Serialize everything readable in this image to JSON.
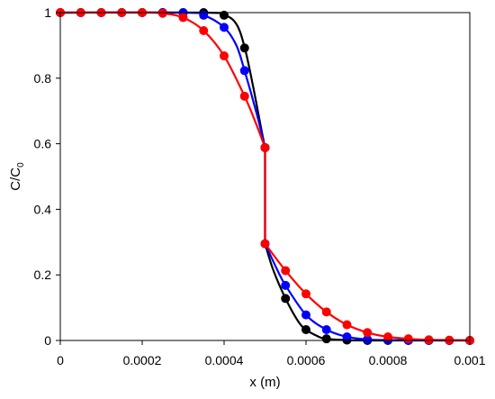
{
  "chart_data": {
    "type": "scatter",
    "title": "",
    "xlabel": "x (m)",
    "ylabel": "C/C",
    "ylabel_subscript": "0",
    "xlim": [
      0,
      0.001
    ],
    "ylim": [
      0,
      1
    ],
    "x_ticks": [
      "0",
      "0.0002",
      "0.0004",
      "0.0006",
      "0.0008",
      "0.001"
    ],
    "x_tick_values": [
      0,
      0.0002,
      0.0004,
      0.0006,
      0.0008,
      0.001
    ],
    "y_ticks": [
      "0",
      "0.2",
      "0.4",
      "0.6",
      "0.8",
      "1"
    ],
    "y_tick_values": [
      0,
      0.2,
      0.4,
      0.6,
      0.8,
      1
    ],
    "grid": false,
    "legend": "none",
    "series": [
      {
        "color": "#000000",
        "points": [
          [
            0,
            1
          ],
          [
            5e-05,
            1
          ],
          [
            0.0001,
            1
          ],
          [
            0.00015,
            1
          ],
          [
            0.0002,
            1
          ],
          [
            0.00025,
            1
          ],
          [
            0.0003,
            1
          ],
          [
            0.00035,
            1
          ],
          [
            0.0004,
            0.992
          ],
          [
            0.00045,
            0.892
          ],
          [
            0.0005,
            0.588
          ],
          [
            0.0005,
            0.295
          ],
          [
            0.00055,
            0.128
          ],
          [
            0.0006,
            0.033
          ],
          [
            0.00065,
            0.005
          ],
          [
            0.0007,
            0.001
          ],
          [
            0.00075,
            0
          ],
          [
            0.0008,
            0
          ],
          [
            0.00085,
            0
          ],
          [
            0.0009,
            0
          ],
          [
            0.00095,
            0
          ],
          [
            0.001,
            0
          ]
        ],
        "curve": [
          [
            0,
            1
          ],
          [
            0.00035,
            1
          ],
          [
            0.0004,
            0.993
          ],
          [
            0.00043,
            0.965
          ],
          [
            0.00045,
            0.895
          ],
          [
            0.00047,
            0.78
          ],
          [
            0.00049,
            0.65
          ],
          [
            0.0005,
            0.588
          ],
          [
            0.0005,
            0.295
          ],
          [
            0.00052,
            0.215
          ],
          [
            0.00055,
            0.128
          ],
          [
            0.00058,
            0.06
          ],
          [
            0.0006,
            0.033
          ],
          [
            0.00063,
            0.012
          ],
          [
            0.00065,
            0.005
          ],
          [
            0.0007,
            0.001
          ],
          [
            0.00075,
            0
          ],
          [
            0.001,
            0
          ]
        ]
      },
      {
        "color": "#0000ff",
        "points": [
          [
            0,
            1
          ],
          [
            5e-05,
            1
          ],
          [
            0.0001,
            1
          ],
          [
            0.00015,
            1
          ],
          [
            0.0002,
            1
          ],
          [
            0.00025,
            1
          ],
          [
            0.0003,
            1
          ],
          [
            0.00035,
            0.992
          ],
          [
            0.0004,
            0.955
          ],
          [
            0.00045,
            0.823
          ],
          [
            0.0005,
            0.588
          ],
          [
            0.0005,
            0.295
          ],
          [
            0.00055,
            0.168
          ],
          [
            0.0006,
            0.078
          ],
          [
            0.00065,
            0.033
          ],
          [
            0.0007,
            0.011
          ],
          [
            0.00075,
            0.003
          ],
          [
            0.0008,
            0.001
          ],
          [
            0.00085,
            0
          ],
          [
            0.0009,
            0
          ],
          [
            0.00095,
            0
          ],
          [
            0.001,
            0
          ]
        ],
        "curve": [
          [
            0,
            1
          ],
          [
            0.0003,
            1
          ],
          [
            0.00035,
            0.992
          ],
          [
            0.0004,
            0.955
          ],
          [
            0.00043,
            0.9
          ],
          [
            0.00045,
            0.823
          ],
          [
            0.00048,
            0.69
          ],
          [
            0.0005,
            0.588
          ],
          [
            0.0005,
            0.295
          ],
          [
            0.00053,
            0.215
          ],
          [
            0.00055,
            0.168
          ],
          [
            0.0006,
            0.078
          ],
          [
            0.00065,
            0.033
          ],
          [
            0.0007,
            0.011
          ],
          [
            0.00075,
            0.003
          ],
          [
            0.0008,
            0.001
          ],
          [
            0.001,
            0
          ]
        ]
      },
      {
        "color": "#ff0000",
        "points": [
          [
            0,
            1
          ],
          [
            5e-05,
            1
          ],
          [
            0.0001,
            1
          ],
          [
            0.00015,
            1
          ],
          [
            0.0002,
            1
          ],
          [
            0.00025,
            0.998
          ],
          [
            0.0003,
            0.985
          ],
          [
            0.00035,
            0.945
          ],
          [
            0.0004,
            0.868
          ],
          [
            0.00045,
            0.745
          ],
          [
            0.0005,
            0.588
          ],
          [
            0.0005,
            0.295
          ],
          [
            0.00055,
            0.213
          ],
          [
            0.0006,
            0.142
          ],
          [
            0.00065,
            0.087
          ],
          [
            0.0007,
            0.048
          ],
          [
            0.00075,
            0.024
          ],
          [
            0.0008,
            0.011
          ],
          [
            0.00085,
            0.005
          ],
          [
            0.0009,
            0.002
          ],
          [
            0.00095,
            0.001
          ],
          [
            0.001,
            0
          ]
        ],
        "curve": [
          [
            0,
            1
          ],
          [
            0.0002,
            1
          ],
          [
            0.00025,
            0.998
          ],
          [
            0.0003,
            0.985
          ],
          [
            0.00035,
            0.945
          ],
          [
            0.0004,
            0.868
          ],
          [
            0.00045,
            0.745
          ],
          [
            0.00048,
            0.655
          ],
          [
            0.0005,
            0.588
          ],
          [
            0.0005,
            0.295
          ],
          [
            0.00055,
            0.213
          ],
          [
            0.0006,
            0.142
          ],
          [
            0.00065,
            0.087
          ],
          [
            0.0007,
            0.048
          ],
          [
            0.00075,
            0.024
          ],
          [
            0.0008,
            0.011
          ],
          [
            0.00085,
            0.005
          ],
          [
            0.0009,
            0.002
          ],
          [
            0.00095,
            0.001
          ],
          [
            0.001,
            0
          ]
        ]
      }
    ]
  }
}
